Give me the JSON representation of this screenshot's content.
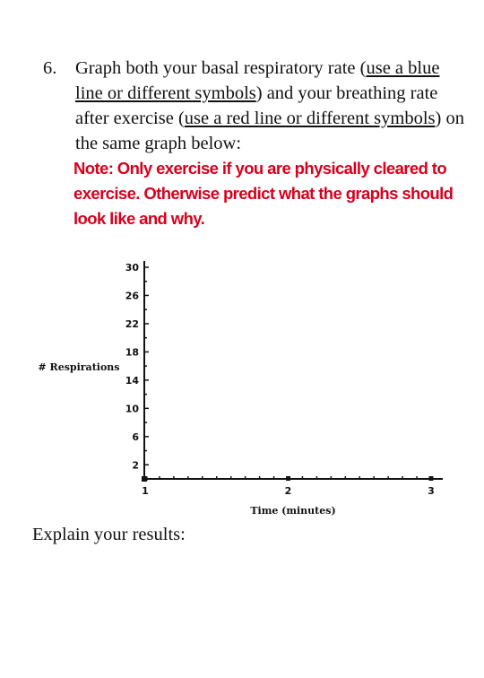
{
  "question": {
    "number": "6.",
    "text_1": "Graph both your basal respiratory rate (",
    "u_1": "use a blue line or different symbols",
    "text_2": ") and your breathing rate after exercise (",
    "u_2": "use a red line or different symbols",
    "text_3": ") on the same graph below:",
    "note": "Note:  Only exercise if you are physically cleared to exercise.  Otherwise predict what the graphs should look like and why."
  },
  "chart_data": {
    "type": "line",
    "title": "",
    "xlabel": "Time (minutes)",
    "ylabel": "# Respirations",
    "x_ticks": [
      "1",
      "2",
      "3"
    ],
    "y_ticks": [
      "2",
      "6",
      "10",
      "14",
      "18",
      "22",
      "26",
      "30"
    ],
    "xlim": [
      1,
      3
    ],
    "ylim": [
      0,
      30
    ],
    "series": []
  },
  "explain_prompt": "Explain your results:"
}
